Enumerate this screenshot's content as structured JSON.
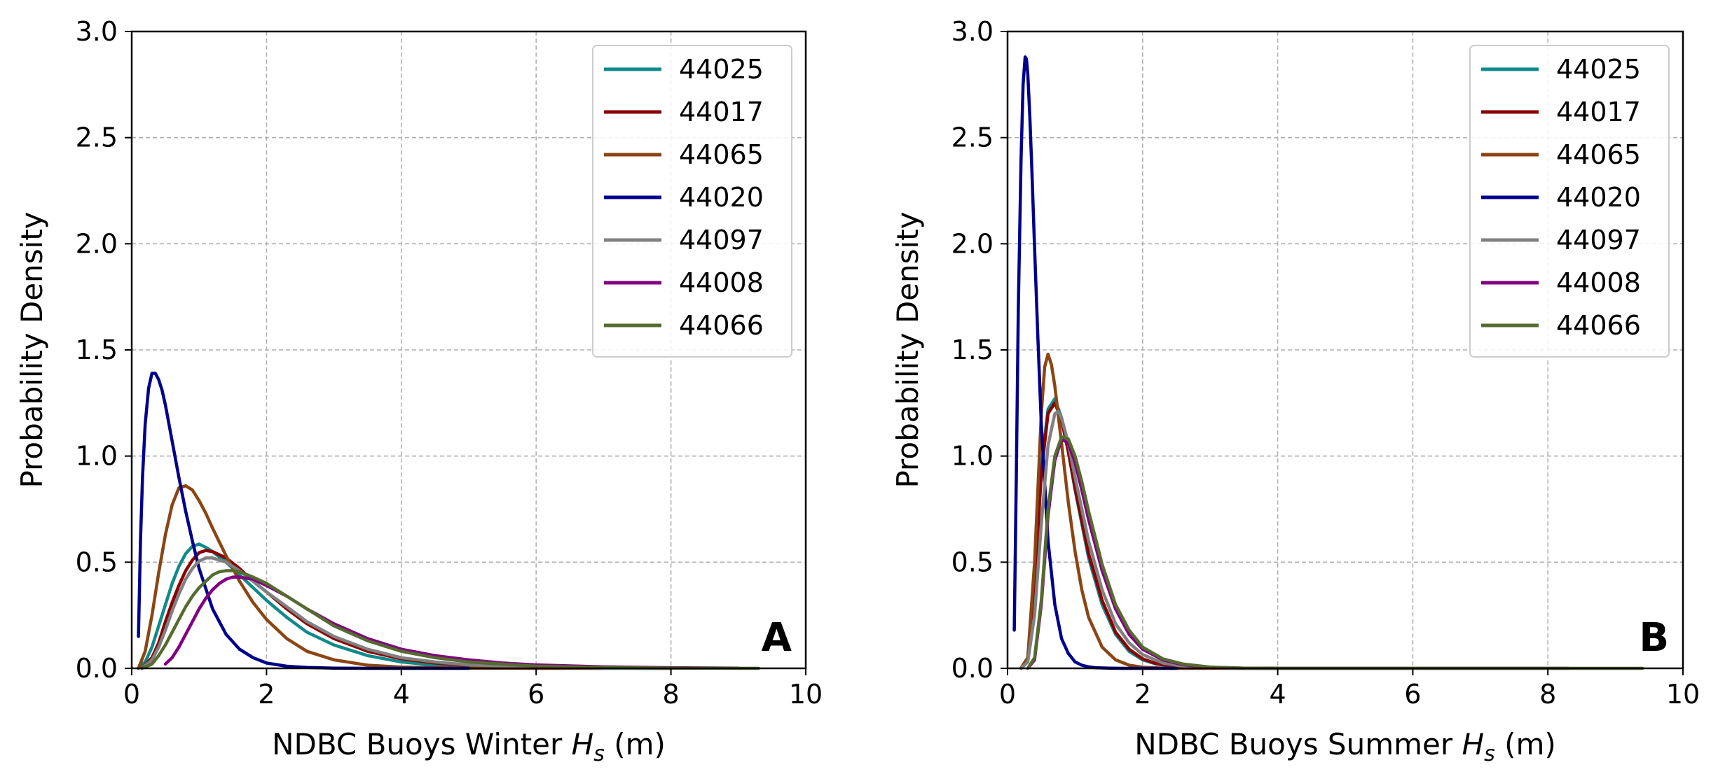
{
  "chart_data": [
    {
      "type": "line",
      "panel_label": "A",
      "xlabel_prefix": "NDBC Buoys Winter ",
      "xlabel_var": "H",
      "xlabel_sub": "s",
      "xlabel_unit": " (m)",
      "ylabel": "Probability Density",
      "xlim": [
        0,
        10
      ],
      "ylim": [
        0,
        3.0
      ],
      "xticks": [
        "0",
        "2",
        "4",
        "6",
        "8",
        "10"
      ],
      "yticks": [
        "0.0",
        "0.5",
        "1.0",
        "1.5",
        "2.0",
        "2.5",
        "3.0"
      ],
      "grid": true,
      "legend_position": "top-right",
      "series": [
        {
          "name": "44025",
          "color": "#0f8a8a",
          "x": [
            0.1,
            0.2,
            0.3,
            0.4,
            0.5,
            0.6,
            0.7,
            0.8,
            0.9,
            1.0,
            1.1,
            1.2,
            1.4,
            1.6,
            1.8,
            2.0,
            2.3,
            2.6,
            3.0,
            3.5,
            4.0,
            4.5,
            5.0,
            6.0,
            7.0,
            8.0
          ],
          "y": [
            0.0,
            0.03,
            0.1,
            0.2,
            0.3,
            0.4,
            0.48,
            0.54,
            0.575,
            0.585,
            0.57,
            0.55,
            0.5,
            0.44,
            0.38,
            0.32,
            0.24,
            0.17,
            0.11,
            0.06,
            0.03,
            0.015,
            0.008,
            0.002,
            0.0,
            0.0
          ]
        },
        {
          "name": "44017",
          "color": "#8b0000",
          "x": [
            0.15,
            0.3,
            0.4,
            0.5,
            0.6,
            0.7,
            0.8,
            0.9,
            1.0,
            1.1,
            1.2,
            1.4,
            1.6,
            1.8,
            2.0,
            2.3,
            2.6,
            3.0,
            3.5,
            4.0,
            4.5,
            5.0,
            6.0,
            7.0,
            8.0
          ],
          "y": [
            0.0,
            0.05,
            0.12,
            0.22,
            0.31,
            0.39,
            0.46,
            0.51,
            0.545,
            0.555,
            0.55,
            0.52,
            0.47,
            0.41,
            0.36,
            0.28,
            0.21,
            0.14,
            0.08,
            0.045,
            0.025,
            0.013,
            0.004,
            0.001,
            0.0
          ]
        },
        {
          "name": "44065",
          "color": "#8b4513",
          "x": [
            0.1,
            0.2,
            0.3,
            0.4,
            0.5,
            0.6,
            0.7,
            0.8,
            0.9,
            1.0,
            1.1,
            1.2,
            1.4,
            1.6,
            1.8,
            2.0,
            2.3,
            2.6,
            3.0,
            3.5,
            4.0,
            5.0,
            6.0,
            7.0
          ],
          "y": [
            0.0,
            0.08,
            0.25,
            0.45,
            0.63,
            0.77,
            0.85,
            0.86,
            0.84,
            0.79,
            0.73,
            0.66,
            0.53,
            0.41,
            0.31,
            0.23,
            0.14,
            0.08,
            0.04,
            0.015,
            0.006,
            0.001,
            0.0,
            0.0
          ]
        },
        {
          "name": "44020",
          "color": "#00008b",
          "x": [
            0.1,
            0.13,
            0.16,
            0.2,
            0.25,
            0.3,
            0.35,
            0.4,
            0.45,
            0.5,
            0.6,
            0.7,
            0.8,
            0.9,
            1.0,
            1.2,
            1.4,
            1.6,
            1.8,
            2.0,
            2.3,
            2.6,
            3.0,
            3.5,
            4.0,
            5.0
          ],
          "y": [
            0.15,
            0.6,
            0.9,
            1.15,
            1.32,
            1.39,
            1.39,
            1.36,
            1.31,
            1.24,
            1.07,
            0.9,
            0.74,
            0.6,
            0.47,
            0.28,
            0.16,
            0.09,
            0.05,
            0.025,
            0.01,
            0.004,
            0.001,
            0.0,
            0.0,
            0.0
          ]
        },
        {
          "name": "44097",
          "color": "#808080",
          "x": [
            0.15,
            0.3,
            0.4,
            0.5,
            0.6,
            0.7,
            0.8,
            0.9,
            1.0,
            1.1,
            1.2,
            1.3,
            1.4,
            1.6,
            1.8,
            2.0,
            2.3,
            2.6,
            3.0,
            3.5,
            4.0,
            4.5,
            5.0,
            6.0,
            7.0,
            8.0
          ],
          "y": [
            0.0,
            0.04,
            0.1,
            0.18,
            0.27,
            0.35,
            0.42,
            0.47,
            0.505,
            0.52,
            0.52,
            0.51,
            0.5,
            0.46,
            0.41,
            0.36,
            0.29,
            0.22,
            0.15,
            0.09,
            0.05,
            0.03,
            0.016,
            0.005,
            0.001,
            0.0
          ]
        },
        {
          "name": "44008",
          "color": "#800080",
          "x": [
            0.5,
            0.6,
            0.7,
            0.8,
            0.9,
            1.0,
            1.1,
            1.2,
            1.3,
            1.4,
            1.5,
            1.6,
            1.8,
            2.0,
            2.3,
            2.6,
            3.0,
            3.5,
            4.0,
            4.5,
            5.0,
            5.5,
            6.0,
            7.0,
            8.0,
            9.0
          ],
          "y": [
            0.02,
            0.05,
            0.1,
            0.16,
            0.22,
            0.28,
            0.33,
            0.37,
            0.4,
            0.42,
            0.43,
            0.43,
            0.42,
            0.39,
            0.34,
            0.28,
            0.21,
            0.14,
            0.09,
            0.06,
            0.04,
            0.025,
            0.016,
            0.007,
            0.003,
            0.001
          ]
        },
        {
          "name": "44066",
          "color": "#556b2f",
          "x": [
            0.15,
            0.3,
            0.4,
            0.5,
            0.6,
            0.7,
            0.8,
            0.9,
            1.0,
            1.1,
            1.2,
            1.3,
            1.4,
            1.5,
            1.6,
            1.8,
            2.0,
            2.3,
            2.6,
            3.0,
            3.5,
            4.0,
            4.5,
            5.0,
            6.0,
            7.0,
            8.0,
            9.3
          ],
          "y": [
            0.0,
            0.02,
            0.06,
            0.11,
            0.17,
            0.23,
            0.29,
            0.34,
            0.38,
            0.41,
            0.44,
            0.455,
            0.46,
            0.46,
            0.455,
            0.43,
            0.4,
            0.34,
            0.28,
            0.2,
            0.13,
            0.08,
            0.05,
            0.03,
            0.01,
            0.004,
            0.001,
            0.0
          ]
        }
      ]
    },
    {
      "type": "line",
      "panel_label": "B",
      "xlabel_prefix": "NDBC Buoys Summer ",
      "xlabel_var": "H",
      "xlabel_sub": "s",
      "xlabel_unit": " (m)",
      "ylabel": "Probability Density",
      "xlim": [
        0,
        10
      ],
      "ylim": [
        0,
        3.0
      ],
      "xticks": [
        "0",
        "2",
        "4",
        "6",
        "8",
        "10"
      ],
      "yticks": [
        "0.0",
        "0.5",
        "1.0",
        "1.5",
        "2.0",
        "2.5",
        "3.0"
      ],
      "grid": true,
      "legend_position": "top-right",
      "series": [
        {
          "name": "44025",
          "color": "#0f8a8a",
          "x": [
            0.2,
            0.3,
            0.4,
            0.5,
            0.6,
            0.7,
            0.8,
            0.9,
            1.0,
            1.2,
            1.4,
            1.6,
            1.8,
            2.0,
            2.2,
            2.5,
            3.0,
            3.5,
            4.0
          ],
          "y": [
            0.0,
            0.05,
            0.4,
            0.95,
            1.22,
            1.27,
            1.18,
            1.02,
            0.84,
            0.52,
            0.3,
            0.16,
            0.08,
            0.04,
            0.02,
            0.007,
            0.001,
            0.0,
            0.0
          ]
        },
        {
          "name": "44017",
          "color": "#8b0000",
          "x": [
            0.2,
            0.3,
            0.4,
            0.5,
            0.6,
            0.7,
            0.8,
            0.9,
            1.0,
            1.2,
            1.4,
            1.6,
            1.8,
            2.0,
            2.2,
            2.5,
            3.0,
            3.5,
            4.0
          ],
          "y": [
            0.0,
            0.05,
            0.38,
            0.92,
            1.2,
            1.25,
            1.17,
            1.02,
            0.85,
            0.54,
            0.32,
            0.17,
            0.09,
            0.045,
            0.022,
            0.008,
            0.001,
            0.0,
            0.0
          ]
        },
        {
          "name": "44065",
          "color": "#8b4513",
          "x": [
            0.2,
            0.3,
            0.4,
            0.5,
            0.55,
            0.6,
            0.65,
            0.7,
            0.8,
            0.9,
            1.0,
            1.1,
            1.2,
            1.4,
            1.6,
            1.8,
            2.0,
            2.3,
            2.6,
            3.0
          ],
          "y": [
            0.0,
            0.05,
            0.5,
            1.2,
            1.42,
            1.48,
            1.43,
            1.33,
            1.06,
            0.78,
            0.55,
            0.37,
            0.24,
            0.1,
            0.04,
            0.015,
            0.005,
            0.001,
            0.0,
            0.0
          ]
        },
        {
          "name": "44020",
          "color": "#00008b",
          "x": [
            0.1,
            0.13,
            0.16,
            0.2,
            0.23,
            0.26,
            0.28,
            0.3,
            0.33,
            0.36,
            0.4,
            0.45,
            0.5,
            0.6,
            0.7,
            0.8,
            0.9,
            1.0,
            1.1,
            1.2,
            1.3,
            1.5,
            1.7,
            2.0,
            2.5
          ],
          "y": [
            0.18,
            0.9,
            1.7,
            2.4,
            2.75,
            2.88,
            2.87,
            2.8,
            2.6,
            2.35,
            1.98,
            1.55,
            1.15,
            0.6,
            0.3,
            0.14,
            0.07,
            0.03,
            0.015,
            0.007,
            0.003,
            0.001,
            0.0,
            0.0,
            0.0
          ]
        },
        {
          "name": "44097",
          "color": "#808080",
          "x": [
            0.2,
            0.3,
            0.4,
            0.5,
            0.6,
            0.7,
            0.75,
            0.8,
            0.9,
            1.0,
            1.2,
            1.4,
            1.6,
            1.8,
            2.0,
            2.3,
            2.6,
            3.0,
            3.5,
            4.0
          ],
          "y": [
            0.0,
            0.03,
            0.25,
            0.68,
            1.05,
            1.2,
            1.21,
            1.18,
            1.06,
            0.9,
            0.6,
            0.37,
            0.21,
            0.12,
            0.065,
            0.025,
            0.01,
            0.003,
            0.0,
            0.0
          ]
        },
        {
          "name": "44008",
          "color": "#800080",
          "x": [
            0.3,
            0.4,
            0.5,
            0.6,
            0.7,
            0.8,
            0.9,
            1.0,
            1.1,
            1.2,
            1.4,
            1.6,
            1.8,
            2.0,
            2.3,
            2.6,
            3.0,
            3.5,
            4.0,
            5.0,
            6.0,
            7.0,
            8.0,
            8.3
          ],
          "y": [
            0.0,
            0.04,
            0.3,
            0.72,
            0.98,
            1.08,
            1.06,
            0.97,
            0.84,
            0.7,
            0.46,
            0.28,
            0.16,
            0.09,
            0.04,
            0.017,
            0.005,
            0.001,
            0.0,
            0.0,
            0.0,
            0.0,
            0.0,
            0.0
          ]
        },
        {
          "name": "44066",
          "color": "#556b2f",
          "x": [
            0.3,
            0.4,
            0.5,
            0.6,
            0.7,
            0.8,
            0.9,
            1.0,
            1.1,
            1.2,
            1.4,
            1.6,
            1.8,
            2.0,
            2.3,
            2.6,
            3.0,
            3.5,
            4.0,
            5.0,
            6.0,
            7.0,
            8.0,
            9.4
          ],
          "y": [
            0.0,
            0.05,
            0.32,
            0.75,
            1.0,
            1.09,
            1.08,
            1.0,
            0.88,
            0.74,
            0.49,
            0.3,
            0.18,
            0.1,
            0.045,
            0.02,
            0.006,
            0.001,
            0.0,
            0.0,
            0.0,
            0.0,
            0.0,
            0.0
          ]
        }
      ]
    }
  ]
}
